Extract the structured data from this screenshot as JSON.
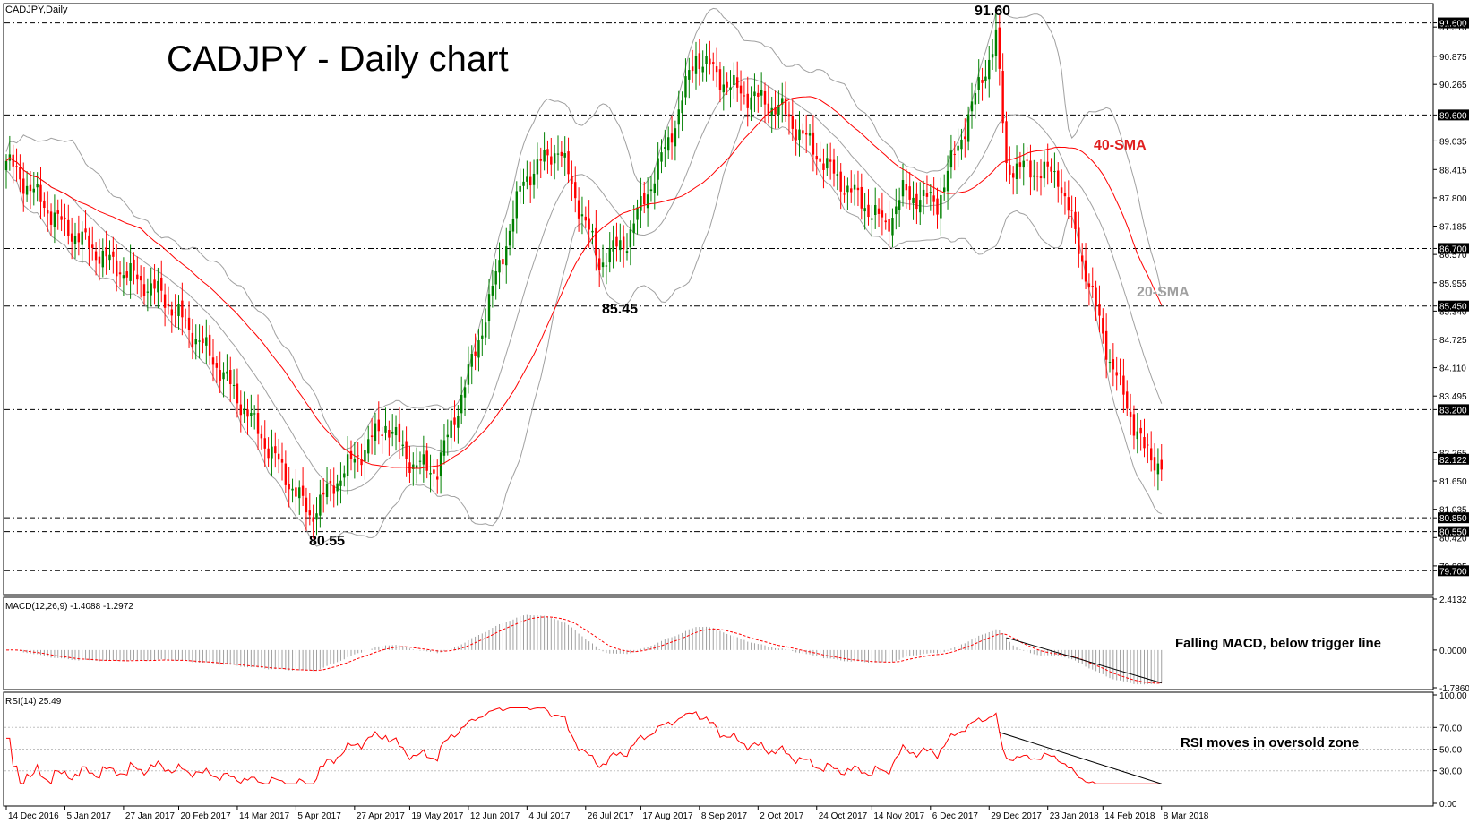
{
  "colors": {
    "bull": "#008000",
    "bear": "#ff0000",
    "bollinger": "#a0a0a0",
    "sma40": "#ff0000",
    "macd_signal": "#ff0000",
    "rsi": "#ff0000",
    "axis": "#000000",
    "highlight_label_bg": "#000000",
    "highlight_label_fg": "#ffffff"
  },
  "chart_data": {
    "type": "candlestick",
    "symbol_label": "CADJPY,Daily",
    "title": "CADJPY - Daily chart",
    "price_axis": {
      "min": 79.2,
      "max": 92.0,
      "tick_labels": [
        "91.600",
        "91.510",
        "90.875",
        "90.265",
        "89.600",
        "89.035",
        "88.415",
        "87.800",
        "87.185",
        "86.700",
        "86.570",
        "85.955",
        "85.450",
        "85.340",
        "84.725",
        "84.110",
        "83.495",
        "83.200",
        "82.265",
        "82.122",
        "81.650",
        "81.035",
        "80.850",
        "80.550",
        "80.420",
        "79.805",
        "79.700"
      ],
      "tick_values": [
        91.6,
        91.51,
        90.875,
        90.265,
        89.6,
        89.035,
        88.415,
        87.8,
        87.185,
        86.7,
        86.57,
        85.955,
        85.45,
        85.34,
        84.725,
        84.11,
        83.495,
        83.2,
        82.265,
        82.122,
        81.65,
        81.035,
        80.85,
        80.55,
        80.42,
        79.805,
        79.7
      ],
      "highlighted": [
        "91.600",
        "89.600",
        "86.700",
        "85.450",
        "83.200",
        "82.122",
        "80.850",
        "80.550",
        "79.700"
      ]
    },
    "horizontal_levels": [
      91.6,
      89.6,
      86.7,
      85.45,
      83.2,
      80.85,
      80.55,
      79.7
    ],
    "x_axis_labels": [
      "14 Dec 2016",
      "5 Jan 2017",
      "27 Jan 2017",
      "20 Feb 2017",
      "14 Mar 2017",
      "5 Apr 2017",
      "27 Apr 2017",
      "19 May 2017",
      "12 Jun 2017",
      "4 Jul 2017",
      "26 Jul 2017",
      "17 Aug 2017",
      "8 Sep 2017",
      "2 Oct 2017",
      "24 Oct 2017",
      "14 Nov 2017",
      "6 Dec 2017",
      "29 Dec 2017",
      "23 Jan 2018",
      "14 Feb 2018",
      "8 Mar 2018"
    ],
    "close_path_anchors": [
      [
        0,
        88.6
      ],
      [
        15,
        87.3
      ],
      [
        30,
        86.4
      ],
      [
        45,
        85.7
      ],
      [
        60,
        84.3
      ],
      [
        75,
        82.5
      ],
      [
        88,
        80.9
      ],
      [
        95,
        81.6
      ],
      [
        110,
        82.9
      ],
      [
        118,
        82.0
      ],
      [
        125,
        81.9
      ],
      [
        135,
        84.2
      ],
      [
        150,
        88.2
      ],
      [
        160,
        88.9
      ],
      [
        172,
        86.4
      ],
      [
        180,
        86.9
      ],
      [
        192,
        89.0
      ],
      [
        200,
        90.9
      ],
      [
        210,
        90.2
      ],
      [
        225,
        89.7
      ],
      [
        240,
        88.3
      ],
      [
        255,
        87.2
      ],
      [
        260,
        87.9
      ],
      [
        270,
        87.7
      ],
      [
        283,
        90.4
      ],
      [
        287,
        91.3
      ],
      [
        290,
        88.5
      ],
      [
        305,
        88.3
      ],
      [
        310,
        87.0
      ],
      [
        320,
        84.3
      ],
      [
        330,
        82.3
      ],
      [
        335,
        82.0
      ]
    ],
    "annotations": {
      "high": "91.60",
      "low1": "80.55",
      "low2": "85.45",
      "sma40": "40-SMA",
      "sma20": "20-SMA"
    },
    "macd": {
      "label": "MACD(12,26,9) -1.4088 -1.2972",
      "axis_labels": [
        "2.4132",
        "0.0000",
        "-1.7860"
      ],
      "axis_values": [
        2.4132,
        0.0,
        -1.786
      ],
      "annotation": "Falling MACD, below trigger line"
    },
    "rsi": {
      "label": "RSI(14) 25.49",
      "axis_labels": [
        "100.00",
        "70.00",
        "50.00",
        "30.00",
        "0.00"
      ],
      "axis_values": [
        100,
        70,
        50,
        30,
        0
      ],
      "annotation": "RSI moves in oversold zone"
    }
  }
}
